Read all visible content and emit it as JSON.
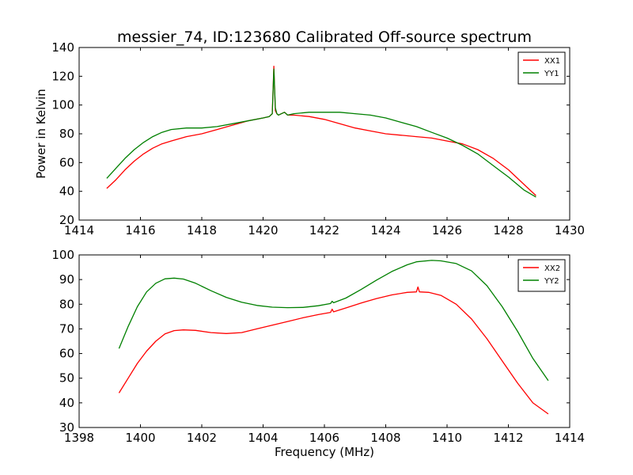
{
  "figure": {
    "title": "messier_74, ID:123680 Calibrated Off-source spectrum"
  },
  "chart_data": [
    {
      "type": "line",
      "title": "messier_74, ID:123680 Calibrated Off-source spectrum",
      "xlabel": "",
      "ylabel": "Power in Kelvin",
      "xlim": [
        1414,
        1430
      ],
      "ylim": [
        20,
        140
      ],
      "xticks": [
        1414,
        1416,
        1418,
        1420,
        1422,
        1424,
        1426,
        1428,
        1430
      ],
      "yticks": [
        20,
        40,
        60,
        80,
        100,
        120,
        140
      ],
      "grid": false,
      "legend": "top-right",
      "series": [
        {
          "name": "XX1",
          "color": "#ff0000",
          "x": [
            1414.9,
            1415.2,
            1415.5,
            1415.8,
            1416.1,
            1416.4,
            1416.7,
            1417.0,
            1417.5,
            1418.0,
            1418.5,
            1419.0,
            1419.5,
            1420.0,
            1420.2,
            1420.3,
            1420.35,
            1420.4,
            1420.45,
            1420.5,
            1420.6,
            1420.7,
            1420.8,
            1421.0,
            1421.5,
            1422.0,
            1422.5,
            1423.0,
            1423.5,
            1424.0,
            1424.5,
            1425.0,
            1425.5,
            1426.0,
            1426.5,
            1427.0,
            1427.5,
            1428.0,
            1428.5,
            1428.9
          ],
          "y": [
            42,
            48,
            55,
            61,
            66,
            70,
            73,
            75,
            78,
            80,
            83,
            86,
            89,
            91,
            92,
            94,
            127,
            96,
            94,
            93,
            94,
            95,
            93,
            93,
            92,
            90,
            87,
            84,
            82,
            80,
            79,
            78,
            77,
            75,
            73,
            69,
            63,
            55,
            45,
            37
          ]
        },
        {
          "name": "YY1",
          "color": "#008000",
          "x": [
            1414.9,
            1415.2,
            1415.5,
            1415.8,
            1416.1,
            1416.4,
            1416.7,
            1417.0,
            1417.5,
            1418.0,
            1418.5,
            1419.0,
            1419.5,
            1420.0,
            1420.2,
            1420.3,
            1420.35,
            1420.4,
            1420.45,
            1420.5,
            1420.6,
            1420.7,
            1420.8,
            1421.0,
            1421.5,
            1422.0,
            1422.5,
            1423.0,
            1423.5,
            1424.0,
            1424.5,
            1425.0,
            1425.5,
            1426.0,
            1426.5,
            1427.0,
            1427.5,
            1428.0,
            1428.5,
            1428.9
          ],
          "y": [
            49,
            56,
            63,
            69,
            74,
            78,
            81,
            83,
            84,
            84,
            85,
            87,
            89,
            91,
            92,
            94,
            125,
            98,
            94,
            93,
            94,
            95,
            93,
            94,
            95,
            95,
            95,
            94,
            93,
            91,
            88,
            85,
            81,
            77,
            72,
            66,
            58,
            50,
            41,
            36
          ]
        }
      ]
    },
    {
      "type": "line",
      "title": "",
      "xlabel": "Frequency (MHz)",
      "ylabel": "",
      "xlim": [
        1398,
        1414
      ],
      "ylim": [
        30,
        100
      ],
      "xticks": [
        1398,
        1400,
        1402,
        1404,
        1406,
        1408,
        1410,
        1412,
        1414
      ],
      "yticks": [
        30,
        40,
        50,
        60,
        70,
        80,
        90,
        100
      ],
      "grid": false,
      "legend": "top-right",
      "series": [
        {
          "name": "XX2",
          "color": "#ff0000",
          "x": [
            1399.3,
            1399.6,
            1399.9,
            1400.2,
            1400.5,
            1400.8,
            1401.1,
            1401.4,
            1401.8,
            1402.3,
            1402.8,
            1403.3,
            1403.8,
            1404.3,
            1404.8,
            1405.3,
            1405.8,
            1406.2,
            1406.25,
            1406.3,
            1406.7,
            1407.2,
            1407.7,
            1408.2,
            1408.7,
            1409.0,
            1409.05,
            1409.1,
            1409.4,
            1409.8,
            1410.3,
            1410.8,
            1411.3,
            1411.8,
            1412.3,
            1412.8,
            1413.3
          ],
          "y": [
            44,
            50,
            56,
            61,
            65,
            68,
            69.3,
            69.6,
            69.4,
            68.5,
            68.1,
            68.5,
            70,
            71.5,
            73,
            74.5,
            75.8,
            76.7,
            78,
            76.9,
            78.5,
            80.5,
            82.3,
            83.8,
            84.8,
            85,
            87,
            85,
            84.8,
            83.6,
            80,
            74,
            66,
            57,
            48,
            40,
            35.5
          ]
        },
        {
          "name": "YY2",
          "color": "#008000",
          "x": [
            1399.3,
            1399.6,
            1399.9,
            1400.2,
            1400.5,
            1400.8,
            1401.1,
            1401.4,
            1401.8,
            1402.3,
            1402.8,
            1403.3,
            1403.8,
            1404.3,
            1404.8,
            1405.3,
            1405.8,
            1406.2,
            1406.25,
            1406.3,
            1406.7,
            1407.2,
            1407.7,
            1408.2,
            1408.7,
            1409.0,
            1409.5,
            1409.8,
            1410.3,
            1410.8,
            1411.3,
            1411.8,
            1412.3,
            1412.8,
            1413.3
          ],
          "y": [
            62,
            71,
            79,
            85,
            88.5,
            90.3,
            90.6,
            90.2,
            88.5,
            85.5,
            82.8,
            80.8,
            79.5,
            78.8,
            78.6,
            78.7,
            79.4,
            80.3,
            81.2,
            80.6,
            82.5,
            86,
            89.8,
            93.3,
            96,
            97.2,
            97.8,
            97.6,
            96.5,
            93.5,
            87.5,
            79,
            69,
            58,
            49
          ]
        }
      ]
    }
  ]
}
